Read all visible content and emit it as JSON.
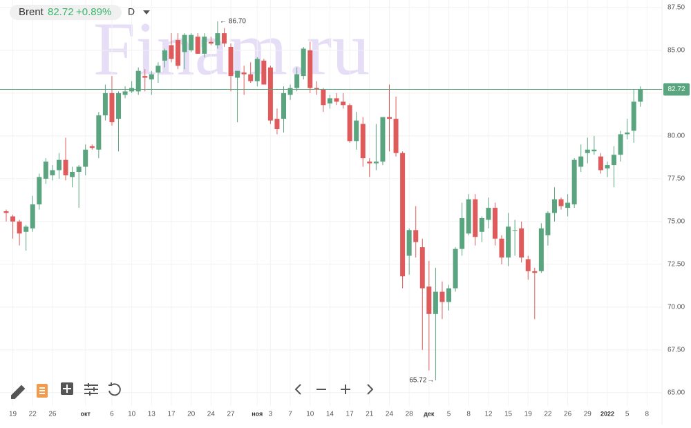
{
  "chart_data": {
    "type": "candlestick",
    "symbol": "Brent",
    "change": "+0.89%",
    "interval": "D",
    "watermark": "Finam.ru",
    "up_color": "#5aa57f",
    "down_color": "#df5b5b",
    "price_line": 82.72,
    "max_label": {
      "value": 86.7,
      "label": "86.70"
    },
    "min_label": {
      "value": 65.72,
      "label": "65.72"
    },
    "ylim": [
      64.23,
      87.94
    ],
    "yticks": [
      {
        "value": 65,
        "label": "65.00"
      },
      {
        "value": 67.5,
        "label": "67.50"
      },
      {
        "value": 70,
        "label": "70.00"
      },
      {
        "value": 72.5,
        "label": "72.50"
      },
      {
        "value": 75,
        "label": "75.00"
      },
      {
        "value": 77.5,
        "label": "77.50"
      },
      {
        "value": 80,
        "label": "80.00"
      },
      {
        "value": 82.5,
        "label": "82.50"
      },
      {
        "value": 85,
        "label": "85.00"
      },
      {
        "value": 87.5,
        "label": "87.50"
      }
    ],
    "grid": true,
    "categories": [
      null,
      "19",
      null,
      null,
      "22",
      null,
      null,
      "26",
      null,
      null,
      null,
      null,
      "окт",
      null,
      null,
      null,
      "6",
      null,
      null,
      "10",
      null,
      null,
      "13",
      null,
      null,
      "17",
      null,
      null,
      "20",
      null,
      null,
      "24",
      null,
      null,
      "27",
      null,
      null,
      null,
      "ноя",
      null,
      "3",
      null,
      null,
      "7",
      null,
      null,
      "10",
      null,
      null,
      "14",
      null,
      null,
      "17",
      null,
      null,
      "21",
      null,
      null,
      "24",
      null,
      null,
      "28",
      null,
      null,
      "дек",
      null,
      null,
      "5",
      null,
      null,
      "8",
      null,
      null,
      "12",
      null,
      null,
      "15",
      null,
      null,
      "19",
      null,
      null,
      "22",
      null,
      null,
      "26",
      null,
      null,
      "29",
      null,
      null,
      "2022",
      null,
      null,
      "5",
      null,
      null,
      "8"
    ],
    "open": [
      75.6,
      75.3,
      75.0,
      74.4,
      74.6,
      76.0,
      77.5,
      77.7,
      78.0,
      78.6,
      77.6,
      77.9,
      78.2,
      79.4,
      79.2,
      81.2,
      82.5,
      81.0,
      82.4,
      82.6,
      82.6,
      83.5,
      83.3,
      83.7,
      84.4,
      85.3,
      85.6,
      84.9,
      85.0,
      85.8,
      84.8,
      85.5,
      85.3,
      86.0,
      85.2,
      83.4,
      83.7,
      83.6,
      83.2,
      84.4,
      84.0,
      81.0,
      81.0,
      82.4,
      82.8,
      83.5,
      85.0,
      82.8,
      82.7,
      81.9,
      82.2,
      82.0,
      81.8,
      79.7,
      80.7,
      78.5,
      78.4,
      78.5,
      81.1,
      81.0,
      79.0,
      73.0,
      74.5,
      73.5,
      71.2,
      69.6,
      70.9,
      70.3,
      71.1,
      73.4,
      74.3,
      76.3,
      74.4,
      75.1,
      75.8,
      74.0,
      72.9,
      74.5,
      74.6,
      72.8,
      72.1,
      72.1,
      74.2,
      75.5,
      76.3,
      75.8,
      76.0,
      78.2,
      79.0,
      79.1,
      78.8,
      78.1,
      78.3,
      78.9,
      80.1,
      80.3,
      82.0,
      null
    ],
    "high": [
      75.7,
      75.4,
      75.1,
      74.8,
      76.5,
      77.8,
      78.7,
      78.3,
      79.0,
      79.9,
      78.2,
      78.3,
      79.5,
      79.5,
      81.4,
      83.0,
      83.5,
      82.6,
      82.9,
      83.2,
      84.0,
      83.9,
      83.8,
      84.3,
      85.1,
      86.0,
      86.0,
      86.0,
      86.0,
      86.0,
      86.0,
      85.8,
      86.7,
      86.3,
      85.4,
      83.8,
      84.1,
      84.3,
      84.6,
      84.5,
      84.1,
      81.6,
      82.9,
      83.0,
      84.0,
      85.2,
      85.5,
      83.2,
      82.8,
      82.4,
      82.5,
      82.5,
      81.9,
      81.4,
      81.1,
      78.7,
      80.7,
      81.1,
      83.0,
      82.3,
      79.1,
      74.6,
      75.9,
      74.0,
      72.7,
      72.3,
      71.5,
      71.3,
      73.5,
      76.1,
      76.6,
      76.6,
      75.3,
      76.4,
      76.1,
      74.2,
      75.5,
      75.1,
      75.0,
      73.0,
      72.3,
      74.9,
      75.6,
      77.0,
      76.4,
      76.6,
      78.7,
      79.5,
      79.9,
      80.0,
      79.0,
      78.5,
      79.4,
      80.3,
      81.0,
      82.7,
      82.9,
      null
    ],
    "low": [
      75.0,
      74.0,
      73.6,
      73.3,
      74.4,
      75.7,
      77.2,
      77.4,
      77.5,
      77.4,
      77.0,
      75.8,
      77.7,
      79.2,
      78.7,
      80.9,
      80.6,
      79.1,
      82.2,
      82.5,
      82.4,
      82.6,
      82.4,
      83.1,
      84.0,
      84.3,
      83.9,
      83.9,
      84.9,
      84.8,
      84.6,
      85.3,
      85.1,
      85.2,
      82.6,
      80.8,
      82.4,
      83.1,
      82.9,
      83.0,
      80.7,
      80.1,
      80.2,
      82.1,
      82.6,
      83.3,
      82.5,
      82.4,
      81.4,
      81.6,
      81.8,
      81.6,
      79.6,
      79.2,
      78.2,
      77.6,
      78.0,
      78.3,
      79.1,
      78.8,
      71.1,
      71.9,
      72.9,
      67.5,
      66.3,
      65.72,
      69.3,
      69.8,
      70.9,
      73.0,
      74.2,
      73.6,
      73.8,
      74.6,
      73.6,
      72.5,
      72.4,
      73.0,
      72.6,
      71.6,
      69.3,
      72.0,
      73.6,
      75.0,
      75.7,
      75.3,
      75.8,
      77.9,
      78.4,
      78.9,
      77.8,
      77.6,
      77.0,
      78.5,
      79.8,
      79.6,
      81.7,
      null
    ],
    "close": [
      75.5,
      75.0,
      74.3,
      74.7,
      76.0,
      77.6,
      78.5,
      78.0,
      78.6,
      77.7,
      77.9,
      78.2,
      79.2,
      79.3,
      81.2,
      82.5,
      80.8,
      82.5,
      82.6,
      82.8,
      83.8,
      83.4,
      83.6,
      84.1,
      85.0,
      84.5,
      84.1,
      85.9,
      85.9,
      84.8,
      85.8,
      85.4,
      86.0,
      85.4,
      83.5,
      83.8,
      83.6,
      83.2,
      84.5,
      83.0,
      80.9,
      80.4,
      82.5,
      82.8,
      83.6,
      85.1,
      82.8,
      82.7,
      81.8,
      82.2,
      82.0,
      81.8,
      79.7,
      80.9,
      78.7,
      78.4,
      78.5,
      81.1,
      81.0,
      79.0,
      71.8,
      74.5,
      73.8,
      71.1,
      69.6,
      70.9,
      70.3,
      71.1,
      73.4,
      75.2,
      76.3,
      74.1,
      75.2,
      75.8,
      74.0,
      72.9,
      74.7,
      74.5,
      72.9,
      72.1,
      72.0,
      74.6,
      75.5,
      76.3,
      75.9,
      76.1,
      78.6,
      78.8,
      79.2,
      79.2,
      78.0,
      78.3,
      78.9,
      80.1,
      80.2,
      82.0,
      82.72,
      null
    ]
  }
}
